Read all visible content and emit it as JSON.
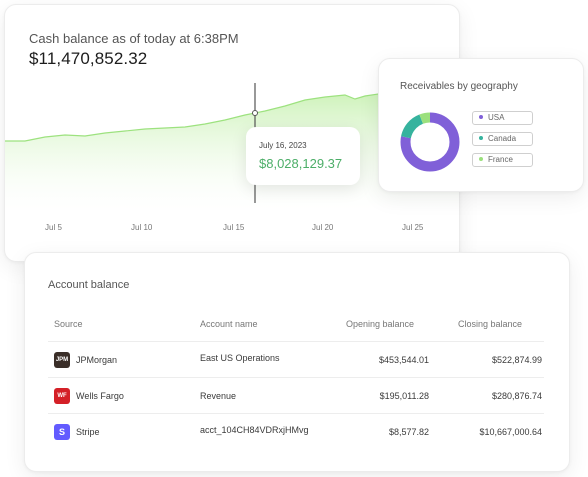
{
  "cash_balance": {
    "title": "Cash balance as of today at 6:38PM",
    "value": "$11,470,852.32",
    "tooltip": {
      "date": "July 16, 2023",
      "value": "$8,028,129.37"
    },
    "x_ticks": [
      "Jul 5",
      "Jul 10",
      "Jul 15",
      "Jul 20",
      "Jul 25"
    ],
    "colors": {
      "fill": "#d6f5c6",
      "line": "#8fdf73",
      "tooltip_value": "#4cae68"
    }
  },
  "receivables": {
    "title": "Receivables by geography",
    "legend": [
      {
        "label": "USA",
        "color": "#8060d8"
      },
      {
        "label": "Canada",
        "color": "#36b39e"
      },
      {
        "label": "France",
        "color": "#9be07d"
      }
    ],
    "shares": [
      0.78,
      0.16,
      0.06
    ]
  },
  "account_balance": {
    "title": "Account balance",
    "headers": {
      "source": "Source",
      "account": "Account name",
      "opening": "Opening  balance",
      "closing": "Closing balance"
    },
    "rows": [
      {
        "source": "JPMorgan",
        "logo_text": "JPM",
        "logo_color": "#3a2e28",
        "account": "East US Operations",
        "opening": "$453,544.01",
        "closing": "$522,874.99"
      },
      {
        "source": "Wells Fargo",
        "logo_text": "WF",
        "logo_color": "#d42027",
        "account": "Revenue",
        "opening": "$195,011.28",
        "closing": "$280,876.74"
      },
      {
        "source": "Stripe",
        "logo_text": "S",
        "logo_color": "#635bff",
        "account": "acct_104CH84VDRxjHMvg",
        "opening": "$8,577.82",
        "closing": "$10,667,000.64"
      }
    ]
  }
}
